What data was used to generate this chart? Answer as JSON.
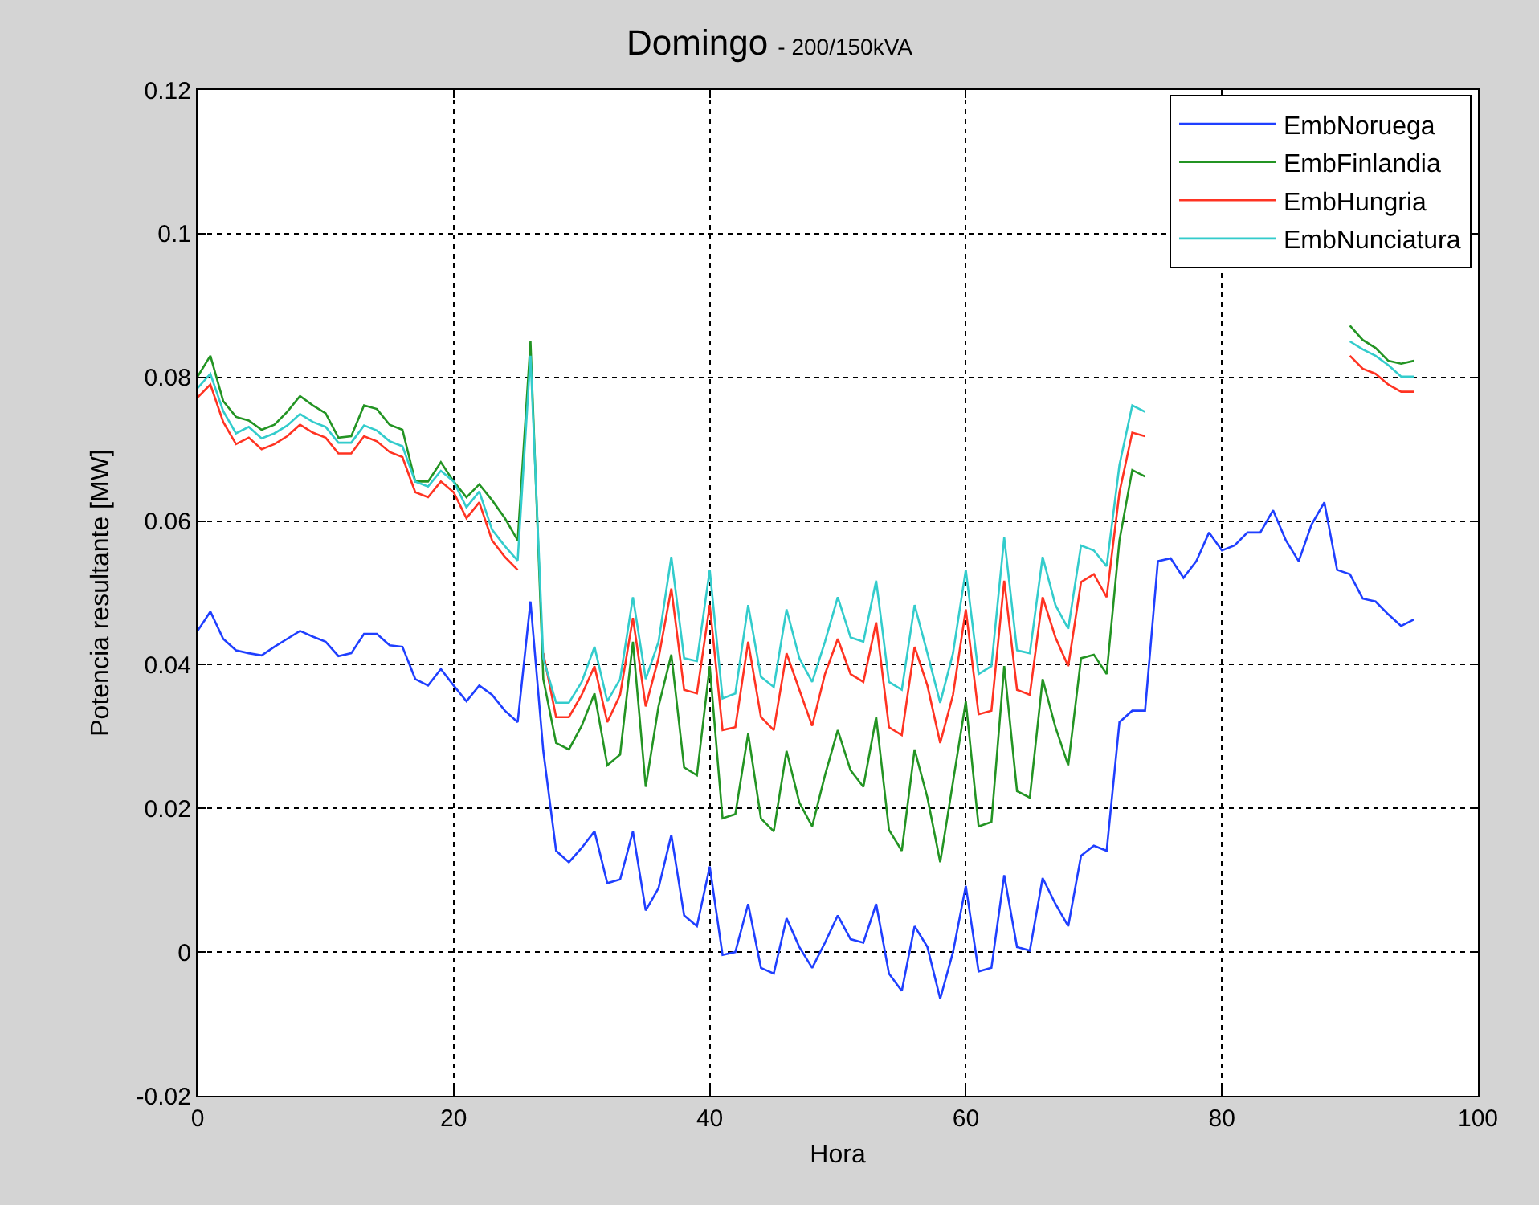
{
  "chart_data": {
    "type": "line",
    "title": "Domingo",
    "subtitle": "- 200/150kVA",
    "xlabel": "Hora",
    "ylabel": "Potencia resultante [MW]",
    "xlim": [
      0,
      100
    ],
    "xticks": [
      0,
      20,
      40,
      60,
      80,
      100
    ],
    "ylim": [
      -0.02,
      0.12
    ],
    "yticks": [
      -0.02,
      0,
      0.02,
      0.04,
      0.06,
      0.08,
      0.1,
      0.12
    ],
    "grid": true,
    "legend": "top right",
    "line_style": "solid",
    "marker": "none",
    "x": [
      0,
      1,
      2,
      3,
      4,
      5,
      6,
      7,
      8,
      9,
      10,
      11,
      12,
      13,
      14,
      15,
      16,
      17,
      18,
      19,
      20,
      21,
      22,
      23,
      24,
      25,
      26,
      27,
      28,
      29,
      30,
      31,
      32,
      33,
      34,
      35,
      36,
      37,
      38,
      39,
      40,
      41,
      42,
      43,
      44,
      45,
      46,
      47,
      48,
      49,
      50,
      51,
      52,
      53,
      54,
      55,
      56,
      57,
      58,
      59,
      60,
      61,
      62,
      63,
      64,
      65,
      66,
      67,
      68,
      69,
      70,
      71,
      72,
      73,
      74,
      75,
      76,
      77,
      78,
      79,
      80,
      81,
      82,
      83,
      84,
      85,
      86,
      87,
      88,
      89,
      90,
      91,
      92,
      93,
      94,
      95
    ],
    "series": [
      {
        "name": "EmbNoruega",
        "color": "#1f3fff",
        "values": [
          0.0447,
          0.0474,
          0.0436,
          0.042,
          0.0416,
          0.0413,
          0.0425,
          0.0436,
          0.0447,
          0.0439,
          0.0432,
          0.0412,
          0.0416,
          0.0443,
          0.0443,
          0.0427,
          0.0425,
          0.038,
          0.0371,
          0.0394,
          0.0371,
          0.0349,
          0.0371,
          0.0358,
          0.0336,
          0.032,
          0.0488,
          0.028,
          0.0141,
          0.0125,
          0.0145,
          0.0168,
          0.0096,
          0.0101,
          0.0168,
          0.0058,
          0.0089,
          0.0163,
          0.0051,
          0.0036,
          0.0119,
          -0.0004,
          0.0,
          0.0067,
          -0.0022,
          -0.003,
          0.0047,
          0.0007,
          -0.0022,
          0.0013,
          0.0051,
          0.0018,
          0.0013,
          0.0067,
          -0.003,
          -0.0054,
          0.0036,
          0.0007,
          -0.0065,
          0.0,
          0.0092,
          -0.0027,
          -0.0022,
          0.0107,
          0.0007,
          0.0002,
          0.0103,
          0.0067,
          0.0036,
          0.0134,
          0.0148,
          0.0141,
          0.032,
          0.0336,
          0.0336,
          0.0544,
          0.0548,
          0.0521,
          0.0544,
          0.0584,
          0.0559,
          0.0566,
          0.0584,
          0.0584,
          0.0615,
          0.0573,
          0.0544,
          0.0595,
          0.0626,
          0.0532,
          0.0526,
          0.0492,
          0.0488,
          0.047,
          0.0454,
          0.0463
        ]
      },
      {
        "name": "EmbFinlandia",
        "color": "#239423",
        "values": [
          0.0801,
          0.083,
          0.0767,
          0.0745,
          0.074,
          0.0727,
          0.0734,
          0.0752,
          0.0774,
          0.0761,
          0.075,
          0.0716,
          0.0718,
          0.0761,
          0.0756,
          0.0734,
          0.0727,
          0.0655,
          0.0655,
          0.0682,
          0.0655,
          0.0633,
          0.0651,
          0.0629,
          0.0604,
          0.0573,
          0.085,
          0.038,
          0.0291,
          0.0282,
          0.0315,
          0.036,
          0.026,
          0.0275,
          0.0432,
          0.023,
          0.0342,
          0.0414,
          0.0257,
          0.0246,
          0.0398,
          0.0186,
          0.0192,
          0.0304,
          0.0186,
          0.0168,
          0.028,
          0.0208,
          0.0175,
          0.0246,
          0.0309,
          0.0253,
          0.023,
          0.0327,
          0.017,
          0.0141,
          0.0282,
          0.0215,
          0.0125,
          0.0237,
          0.0349,
          0.0175,
          0.0181,
          0.0398,
          0.0224,
          0.0215,
          0.038,
          0.0313,
          0.026,
          0.0409,
          0.0414,
          0.0387,
          0.0573,
          0.0671,
          0.0662,
          null,
          null,
          null,
          null,
          null,
          null,
          null,
          null,
          null,
          null,
          null,
          null,
          null,
          null,
          null,
          0.0872,
          0.0852,
          0.0841,
          0.0823,
          0.0819,
          0.0823
        ]
      },
      {
        "name": "EmbHungria",
        "color": "#ff3322",
        "values": [
          0.0772,
          0.079,
          0.0738,
          0.0707,
          0.0716,
          0.07,
          0.0707,
          0.0718,
          0.0734,
          0.0723,
          0.0716,
          0.0694,
          0.0694,
          0.0718,
          0.0711,
          0.0696,
          0.0689,
          0.064,
          0.0633,
          0.0655,
          0.064,
          0.0604,
          0.0626,
          0.0573,
          0.055,
          0.0532,
          null,
          0.0416,
          0.0327,
          0.0327,
          0.0358,
          0.0398,
          0.032,
          0.0358,
          0.0465,
          0.0342,
          0.0409,
          0.0506,
          0.0365,
          0.036,
          0.0483,
          0.0309,
          0.0313,
          0.0432,
          0.0327,
          0.0309,
          0.0416,
          0.0365,
          0.0315,
          0.0387,
          0.0436,
          0.0387,
          0.0376,
          0.0459,
          0.0313,
          0.0302,
          0.0425,
          0.0371,
          0.0291,
          0.0358,
          0.0477,
          0.0331,
          0.0336,
          0.0517,
          0.0365,
          0.0358,
          0.0494,
          0.0438,
          0.0398,
          0.0515,
          0.0526,
          0.0494,
          0.064,
          0.0723,
          0.0718,
          null,
          null,
          null,
          null,
          null,
          null,
          null,
          null,
          null,
          null,
          null,
          null,
          null,
          null,
          null,
          0.083,
          0.0812,
          0.0805,
          0.079,
          0.078,
          0.078
        ]
      },
      {
        "name": "EmbNunciatura",
        "color": "#33cccc",
        "values": [
          0.0785,
          0.0805,
          0.0753,
          0.0722,
          0.0731,
          0.0715,
          0.0722,
          0.0733,
          0.0749,
          0.0738,
          0.0731,
          0.0709,
          0.0709,
          0.0733,
          0.0726,
          0.0711,
          0.0704,
          0.0655,
          0.0648,
          0.067,
          0.0655,
          0.0619,
          0.0641,
          0.0588,
          0.0565,
          0.0545,
          0.083,
          0.0409,
          0.0347,
          0.0347,
          0.0376,
          0.0425,
          0.0349,
          0.038,
          0.0494,
          0.038,
          0.0432,
          0.055,
          0.0409,
          0.0405,
          0.0532,
          0.0353,
          0.036,
          0.0483,
          0.0383,
          0.0369,
          0.0477,
          0.0409,
          0.0376,
          0.0432,
          0.0494,
          0.0438,
          0.0432,
          0.0517,
          0.0376,
          0.0365,
          0.0483,
          0.0416,
          0.0347,
          0.0416,
          0.0532,
          0.0387,
          0.0398,
          0.0577,
          0.042,
          0.0416,
          0.055,
          0.0483,
          0.045,
          0.0566,
          0.0559,
          0.0537,
          0.0678,
          0.0761,
          0.0752,
          null,
          null,
          null,
          null,
          null,
          null,
          null,
          null,
          null,
          null,
          null,
          null,
          null,
          null,
          null,
          0.085,
          0.0839,
          0.083,
          0.0817,
          0.0801,
          0.0801
        ]
      }
    ]
  }
}
